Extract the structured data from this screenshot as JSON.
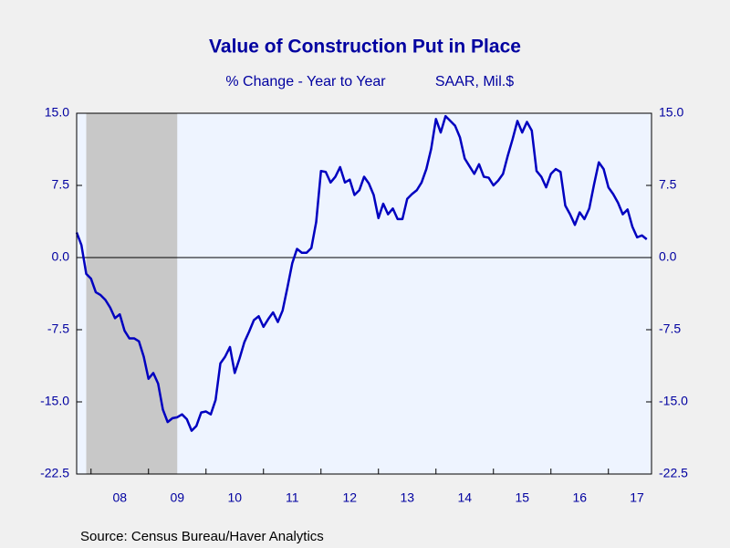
{
  "chart_data": {
    "type": "line",
    "title": "Value of Construction Put in Place",
    "subtitle": [
      "% Change - Year to Year",
      "SAAR, Mil.$"
    ],
    "source": "Source:  Census Bureau/Haver Analytics",
    "x": [
      2007.75,
      2007.833,
      2007.917,
      2008,
      2008.083,
      2008.167,
      2008.25,
      2008.333,
      2008.417,
      2008.5,
      2008.583,
      2008.667,
      2008.75,
      2008.833,
      2008.917,
      2009,
      2009.083,
      2009.167,
      2009.25,
      2009.333,
      2009.417,
      2009.5,
      2009.583,
      2009.667,
      2009.75,
      2009.833,
      2009.917,
      2010,
      2010.083,
      2010.167,
      2010.25,
      2010.333,
      2010.417,
      2010.5,
      2010.583,
      2010.667,
      2010.75,
      2010.833,
      2010.917,
      2011,
      2011.083,
      2011.167,
      2011.25,
      2011.333,
      2011.417,
      2011.5,
      2011.583,
      2011.667,
      2011.75,
      2011.833,
      2011.917,
      2012,
      2012.083,
      2012.167,
      2012.25,
      2012.333,
      2012.417,
      2012.5,
      2012.583,
      2012.667,
      2012.75,
      2012.833,
      2012.917,
      2013,
      2013.083,
      2013.167,
      2013.25,
      2013.333,
      2013.417,
      2013.5,
      2013.583,
      2013.667,
      2013.75,
      2013.833,
      2013.917,
      2014,
      2014.083,
      2014.167,
      2014.25,
      2014.333,
      2014.417,
      2014.5,
      2014.583,
      2014.667,
      2014.75,
      2014.833,
      2014.917,
      2015,
      2015.083,
      2015.167,
      2015.25,
      2015.333,
      2015.417,
      2015.5,
      2015.583,
      2015.667,
      2015.75,
      2015.833,
      2015.917,
      2016,
      2016.083,
      2016.167,
      2016.25,
      2016.333,
      2016.417,
      2016.5,
      2016.583,
      2016.667,
      2016.75,
      2016.833,
      2016.917,
      2017,
      2017.083,
      2017.167,
      2017.25,
      2017.333,
      2017.417,
      2017.5,
      2017.583,
      2017.667
    ],
    "series": [
      {
        "color": "#0000c0",
        "values": [
          2.6,
          1.3,
          -1.7,
          -2.2,
          -3.6,
          -3.9,
          -4.4,
          -5.2,
          -6.3,
          -5.9,
          -7.6,
          -8.4,
          -8.4,
          -8.7,
          -10.3,
          -12.6,
          -12.0,
          -13.1,
          -15.8,
          -17.1,
          -16.7,
          -16.6,
          -16.3,
          -16.8,
          -18.0,
          -17.5,
          -16.1,
          -16.0,
          -16.3,
          -14.8,
          -11.0,
          -10.3,
          -9.3,
          -12.0,
          -10.5,
          -8.8,
          -7.7,
          -6.5,
          -6.1,
          -7.2,
          -6.4,
          -5.7,
          -6.7,
          -5.5,
          -3.1,
          -0.6,
          0.9,
          0.5,
          0.5,
          1.0,
          3.7,
          9.0,
          8.9,
          7.8,
          8.4,
          9.4,
          7.8,
          8.1,
          6.5,
          7.0,
          8.4,
          7.7,
          6.5,
          4.1,
          5.6,
          4.5,
          5.1,
          4.0,
          4.0,
          6.1,
          6.6,
          7.0,
          7.8,
          9.2,
          11.3,
          14.4,
          13.0,
          14.7,
          14.2,
          13.7,
          12.5,
          10.3,
          9.5,
          8.7,
          9.7,
          8.4,
          8.3,
          7.5,
          8.0,
          8.7,
          10.6,
          12.3,
          14.2,
          13.0,
          14.1,
          13.2,
          9.0,
          8.4,
          7.3,
          8.7,
          9.2,
          8.9,
          5.4,
          4.5,
          3.4,
          4.7,
          4.0,
          5.1,
          7.6,
          9.9,
          9.2,
          7.3,
          6.6,
          5.7,
          4.5,
          5.0,
          3.2,
          2.1,
          2.3,
          1.9
        ]
      }
    ],
    "recession": [
      2007.917,
      2009.5
    ],
    "xlim": [
      2007.75,
      2017.75
    ],
    "xticks": [
      {
        "value": 2008,
        "label": "08"
      },
      {
        "value": 2009,
        "label": "09"
      },
      {
        "value": 2010,
        "label": "10"
      },
      {
        "value": 2011,
        "label": "11"
      },
      {
        "value": 2012,
        "label": "12"
      },
      {
        "value": 2013,
        "label": "13"
      },
      {
        "value": 2014,
        "label": "14"
      },
      {
        "value": 2015,
        "label": "15"
      },
      {
        "value": 2016,
        "label": "16"
      },
      {
        "value": 2017,
        "label": "17"
      }
    ],
    "ylim": [
      -22.5,
      15
    ],
    "yticks": [
      {
        "value": -22.5,
        "label": "-22.5"
      },
      {
        "value": -15,
        "label": "-15.0"
      },
      {
        "value": -7.5,
        "label": "-7.5"
      },
      {
        "value": 0,
        "label": "0.0"
      },
      {
        "value": 7.5,
        "label": "7.5"
      },
      {
        "value": 15,
        "label": "15.0"
      }
    ]
  }
}
